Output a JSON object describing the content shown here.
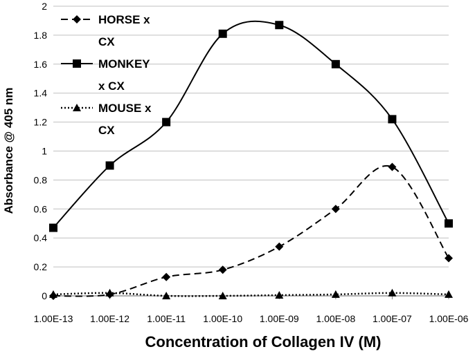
{
  "chart_data": {
    "type": "line",
    "xlabel": "Concentration of Collagen IV (M)",
    "ylabel": "Absorbance @ 405 nm",
    "categories": [
      "1.00E-13",
      "1.00E-12",
      "1.00E-11",
      "1.00E-10",
      "1.00E-09",
      "1.00E-08",
      "1.00E-07",
      "1.00E-06"
    ],
    "ylim": [
      0,
      2
    ],
    "yticks": [
      "0",
      "0.2",
      "0.4",
      "0.6",
      "0.8",
      "1",
      "1.2",
      "1.4",
      "1.6",
      "1.8",
      "2"
    ],
    "grid": "horizontal",
    "legend_position": "top-left",
    "series": [
      {
        "name": "HORSE x CX",
        "legend_lines": [
          "HORSE x",
          "CX"
        ],
        "marker": "diamond",
        "line_style": "dashed",
        "values": [
          0.0,
          0.01,
          0.13,
          0.18,
          0.34,
          0.6,
          0.89,
          0.26
        ]
      },
      {
        "name": "MONKEY x CX",
        "legend_lines": [
          "MONKEY",
          "x CX"
        ],
        "marker": "square",
        "line_style": "solid",
        "values": [
          0.47,
          0.9,
          1.2,
          1.81,
          1.87,
          1.6,
          1.22,
          0.5
        ]
      },
      {
        "name": "MOUSE x CX",
        "legend_lines": [
          "MOUSE x",
          "CX"
        ],
        "marker": "triangle",
        "line_style": "dotted",
        "values": [
          0.01,
          0.02,
          0.0,
          0.0,
          0.005,
          0.01,
          0.02,
          0.01
        ]
      }
    ],
    "colors": {
      "line": "#000000",
      "grid": "#bfbfbf",
      "axis": "#808080"
    }
  }
}
